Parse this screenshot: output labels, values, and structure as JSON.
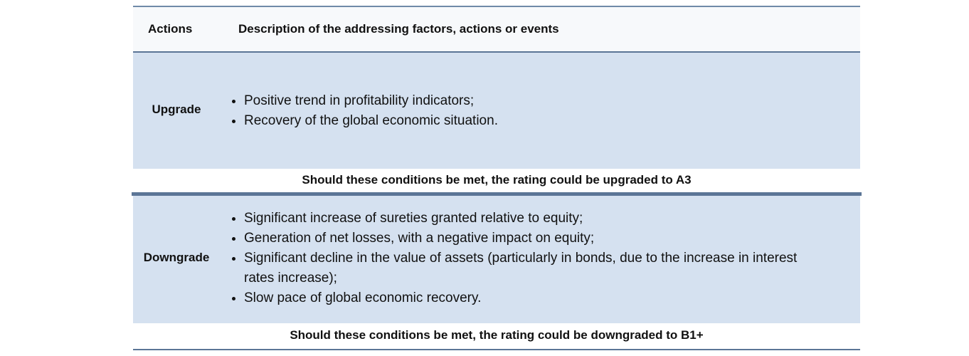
{
  "header": {
    "col_actions": "Actions",
    "col_description": "Description of the addressing factors, actions or events"
  },
  "upgrade": {
    "label": "Upgrade",
    "items": [
      "Positive trend in profitability indicators;",
      "Recovery of the global economic situation."
    ],
    "condition": "Should these conditions be met, the rating could be upgraded to A3"
  },
  "downgrade": {
    "label": "Downgrade",
    "items": [
      "Significant increase of sureties granted relative to equity;",
      "Generation of net losses, with a negative impact on equity;",
      "Significant decline in the value of assets (particularly in bonds, due to the increase in interest rates increase);",
      "Slow pace of global economic recovery."
    ],
    "condition": "Should these conditions be met, the rating could be downgraded to B1+"
  },
  "colors": {
    "band": "#d5e1f0",
    "rule": "#5b7596",
    "header_bg": "#f7f9fb"
  }
}
